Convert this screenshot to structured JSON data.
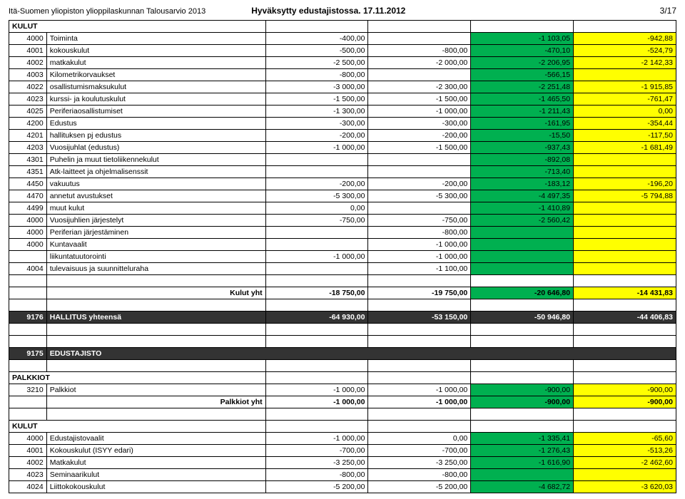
{
  "header": {
    "left": "Itä-Suomen yliopiston ylioppilaskunnan Talousarvio 2013",
    "mid": "Hyväksytty edustajistossa. 17.11.2012",
    "right": "3/17"
  },
  "colors": {
    "green": "#00b050",
    "yellow": "#ffff00",
    "olive": "#808000",
    "dark": "#333333",
    "white": "#ffffff",
    "black": "#000000"
  },
  "kulut_label": "KULUT",
  "rows1": [
    {
      "code": "4000",
      "name": "Toiminta",
      "c2": "-400,00",
      "c3": "",
      "c4": "-1 103,05",
      "c5": "-942,88"
    },
    {
      "code": "4001",
      "name": "kokouskulut",
      "c2": "-500,00",
      "c3": "-800,00",
      "c4": "-470,10",
      "c5": "-524,79"
    },
    {
      "code": "4002",
      "name": "matkakulut",
      "c2": "-2 500,00",
      "c3": "-2 000,00",
      "c4": "-2 206,95",
      "c5": "-2 142,33"
    },
    {
      "code": "4003",
      "name": "Kilometrikorvaukset",
      "c2": "-800,00",
      "c3": "",
      "c4": "-566,15",
      "c5": ""
    },
    {
      "code": "4022",
      "name": "osallistumismaksukulut",
      "c2": "-3 000,00",
      "c3": "-2 300,00",
      "c4": "-2 251,48",
      "c5": "-1 915,85"
    },
    {
      "code": "4023",
      "name": "kurssi- ja koulutuskulut",
      "c2": "-1 500,00",
      "c3": "-1 500,00",
      "c4": "-1 465,50",
      "c5": "-761,47"
    },
    {
      "code": "4025",
      "name": "Periferiaosallistumiset",
      "c2": "-1 300,00",
      "c3": "-1 000,00",
      "c4": "-1 211,43",
      "c5": "0,00"
    },
    {
      "code": "4200",
      "name": "Edustus",
      "c2": "-300,00",
      "c3": "-300,00",
      "c4": "-161,95",
      "c5": "-354,44"
    },
    {
      "code": "4201",
      "name": "hallituksen pj edustus",
      "c2": "-200,00",
      "c3": "-200,00",
      "c4": "-15,50",
      "c5": "-117,50"
    },
    {
      "code": "4203",
      "name": "Vuosijuhlat (edustus)",
      "c2": "-1 000,00",
      "c3": "-1 500,00",
      "c4": "-937,43",
      "c5": "-1 681,49"
    },
    {
      "code": "4301",
      "name": "Puhelin ja muut tietoliikennekulut",
      "c2": "",
      "c3": "",
      "c4": "-892,08",
      "c5": ""
    },
    {
      "code": "4351",
      "name": "Atk-laitteet ja ohjelmalisenssit",
      "c2": "",
      "c3": "",
      "c4": "-713,40",
      "c5": ""
    },
    {
      "code": "4450",
      "name": "vakuutus",
      "c2": "-200,00",
      "c3": "-200,00",
      "c4": "-183,12",
      "c5": "-196,20"
    },
    {
      "code": "4470",
      "name": "annetut avustukset",
      "c2": "-5 300,00",
      "c3": "-5 300,00",
      "c4": "-4 497,35",
      "c5": "-5 794,88"
    },
    {
      "code": "4499",
      "name": "muut kulut",
      "c2": "0,00",
      "c3": "",
      "c4": "-1 410,89",
      "c5": ""
    },
    {
      "code": "4000",
      "name": "Vuosijuhlien järjestelyt",
      "c2": "-750,00",
      "c3": "-750,00",
      "c4": "-2 560,42",
      "c5": ""
    },
    {
      "code": "4000",
      "name": "Periferian järjestäminen",
      "c2": "",
      "c3": "-800,00",
      "c4": "",
      "c5": ""
    },
    {
      "code": "4000",
      "name": "Kuntavaalit",
      "c2": "",
      "c3": "-1 000,00",
      "c4": "",
      "c5": ""
    },
    {
      "code": "",
      "name": "liikuntatuutorointi",
      "c2": "-1 000,00",
      "c3": "-1 000,00",
      "c4": "",
      "c5": ""
    },
    {
      "code": "4004",
      "name": "tulevaisuus ja suunnitteluraha",
      "c2": "",
      "c3": "-1 100,00",
      "c4": "",
      "c5": ""
    }
  ],
  "kulut_yht": {
    "label": "Kulut yht",
    "c2": "-18 750,00",
    "c3": "-19 750,00",
    "c4": "-20 646,80",
    "c5": "-14 431,83"
  },
  "hallitus": {
    "code": "9176",
    "label": "HALLITUS yhteensä",
    "c2": "-64 930,00",
    "c3": "-53 150,00",
    "c4": "-50 946,80",
    "c5": "-44 406,83"
  },
  "edustajisto": {
    "code": "9175",
    "label": "EDUSTAJISTO"
  },
  "palkkiot_label": "PALKKIOT",
  "palkkiot_row": {
    "code": "3210",
    "name": "Palkkiot",
    "c2": "-1 000,00",
    "c3": "-1 000,00",
    "c4": "-900,00",
    "c5": "-900,00"
  },
  "palkkiot_yht": {
    "label": "Palkkiot yht",
    "c2": "-1 000,00",
    "c3": "-1 000,00",
    "c4": "-900,00",
    "c5": "-900,00"
  },
  "rows2": [
    {
      "code": "4000",
      "name": "Edustajistovaalit",
      "c2": "-1 000,00",
      "c3": "0,00",
      "c4": "-1 335,41",
      "c5": "-65,60"
    },
    {
      "code": "4001",
      "name": "Kokouskulut (ISYY edari)",
      "c2": "-700,00",
      "c3": "-700,00",
      "c4": "-1 276,43",
      "c5": "-513,26"
    },
    {
      "code": "4002",
      "name": "Matkakulut",
      "c2": "-3 250,00",
      "c3": "-3 250,00",
      "c4": "-1 616,90",
      "c5": "-2 462,60"
    },
    {
      "code": "4023",
      "name": "Seminaarikulut",
      "c2": "-800,00",
      "c3": "-800,00",
      "c4": "",
      "c5": ""
    },
    {
      "code": "4024",
      "name": "Liittokokouskulut",
      "c2": "-5 200,00",
      "c3": "-5 200,00",
      "c4": "-4 682,72",
      "c5": "-3 620,03"
    }
  ]
}
